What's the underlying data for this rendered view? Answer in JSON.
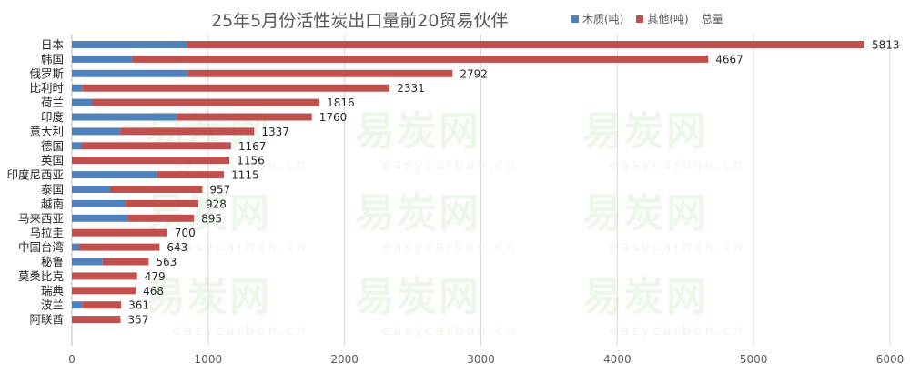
{
  "chart_data": {
    "type": "bar",
    "orientation": "horizontal",
    "stacked": true,
    "title": "25年5月份活性炭出口量前20贸易伙伴",
    "categories": [
      "日本",
      "韩国",
      "俄罗斯",
      "比利时",
      "荷兰",
      "印度",
      "意大利",
      "德国",
      "英国",
      "印度尼西亚",
      "泰国",
      "越南",
      "马来西亚",
      "乌拉圭",
      "中国台湾",
      "秘鲁",
      "莫桑比克",
      "瑞典",
      "波兰",
      "阿联酋"
    ],
    "series": [
      {
        "name": "木质(吨)",
        "color": "#4f81bd",
        "values": [
          845,
          440,
          850,
          75,
          150,
          770,
          355,
          70,
          0,
          625,
          280,
          395,
          410,
          0,
          50,
          225,
          0,
          0,
          75,
          0
        ]
      },
      {
        "name": "其他(吨)",
        "color": "#c0504d",
        "values": [
          4968,
          4227,
          1942,
          2256,
          1666,
          990,
          982,
          1097,
          1156,
          490,
          677,
          533,
          485,
          700,
          593,
          338,
          479,
          468,
          286,
          357
        ]
      }
    ],
    "totals_label": "总量",
    "totals": [
      5813,
      4667,
      2792,
      2331,
      1816,
      1760,
      1337,
      1167,
      1156,
      1115,
      957,
      928,
      895,
      700,
      643,
      563,
      479,
      468,
      361,
      357
    ],
    "x_ticks": [
      0,
      1000,
      2000,
      3000,
      4000,
      5000,
      6000
    ],
    "xlim": [
      0,
      6000
    ],
    "grid": true,
    "legend_position": "top-right"
  },
  "watermark": {
    "text": "易炭网",
    "subtext": "easycarbon.cn"
  }
}
